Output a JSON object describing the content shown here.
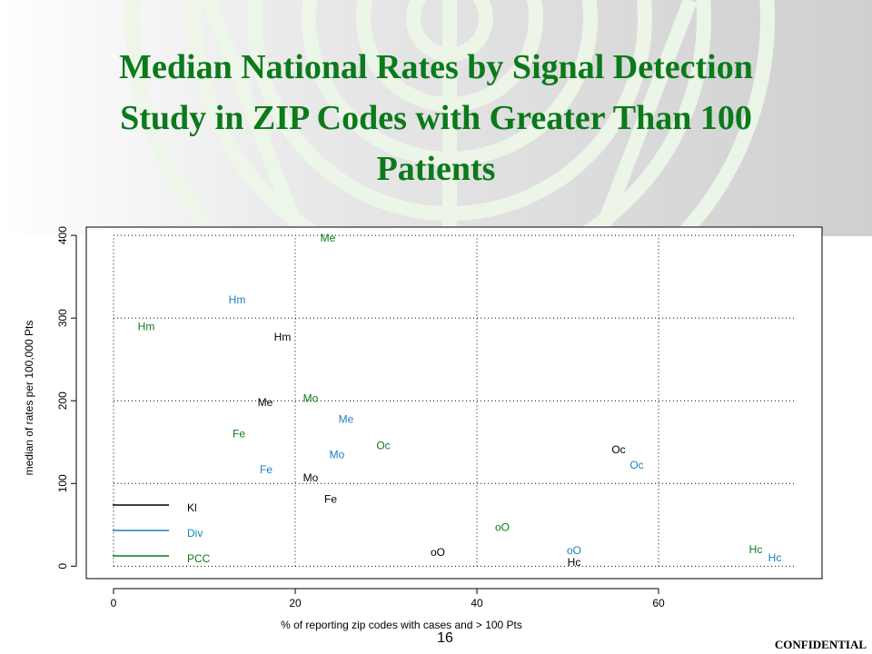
{
  "slide": {
    "title_lines": [
      "Median National Rates by Signal Detection",
      "Study in ZIP Codes with Greater Than 100",
      "Patients"
    ],
    "page_number": "16",
    "confidential": "CONFIDENTIAL",
    "accent_color": "#0a7a1a"
  },
  "chart_data": {
    "type": "scatter",
    "xlabel": "% of reporting zip codes with cases and > 100 Pts",
    "ylabel": "median of rates per 100,000 Pts",
    "xlim": [
      -3,
      78
    ],
    "ylim": [
      -15,
      410
    ],
    "xticks": [
      0,
      20,
      40,
      60
    ],
    "yticks": [
      0,
      100,
      200,
      300,
      400
    ],
    "grid": "dotted",
    "legend_position": "bottom-left",
    "series": [
      {
        "name": "Kl",
        "color": "#000000",
        "points": [
          {
            "label": "Hm",
            "x": 18.6,
            "y": 277
          },
          {
            "label": "Me",
            "x": 16.7,
            "y": 198
          },
          {
            "label": "Mo",
            "x": 21.7,
            "y": 107
          },
          {
            "label": "Fe",
            "x": 23.9,
            "y": 81
          },
          {
            "label": "oO",
            "x": 35.7,
            "y": 17
          },
          {
            "label": "Hc",
            "x": 50.7,
            "y": 5
          },
          {
            "label": "Oc",
            "x": 55.6,
            "y": 141
          }
        ]
      },
      {
        "name": "Div",
        "color": "#1a7fc4",
        "points": [
          {
            "label": "Hm",
            "x": 13.6,
            "y": 322
          },
          {
            "label": "Me",
            "x": 25.6,
            "y": 178
          },
          {
            "label": "Mo",
            "x": 24.6,
            "y": 135
          },
          {
            "label": "Fe",
            "x": 16.8,
            "y": 117
          },
          {
            "label": "oO",
            "x": 50.7,
            "y": 19
          },
          {
            "label": "Oc",
            "x": 57.6,
            "y": 122
          },
          {
            "label": "Hc",
            "x": 72.8,
            "y": 10
          }
        ]
      },
      {
        "name": "PCC",
        "color": "#0a7a1a",
        "points": [
          {
            "label": "Hm",
            "x": 3.6,
            "y": 290
          },
          {
            "label": "Me",
            "x": 23.6,
            "y": 397
          },
          {
            "label": "Mo",
            "x": 21.7,
            "y": 203
          },
          {
            "label": "Fe",
            "x": 13.8,
            "y": 160
          },
          {
            "label": "Oc",
            "x": 29.7,
            "y": 146
          },
          {
            "label": "oO",
            "x": 42.8,
            "y": 47
          },
          {
            "label": "Hc",
            "x": 70.7,
            "y": 20
          }
        ]
      }
    ]
  }
}
